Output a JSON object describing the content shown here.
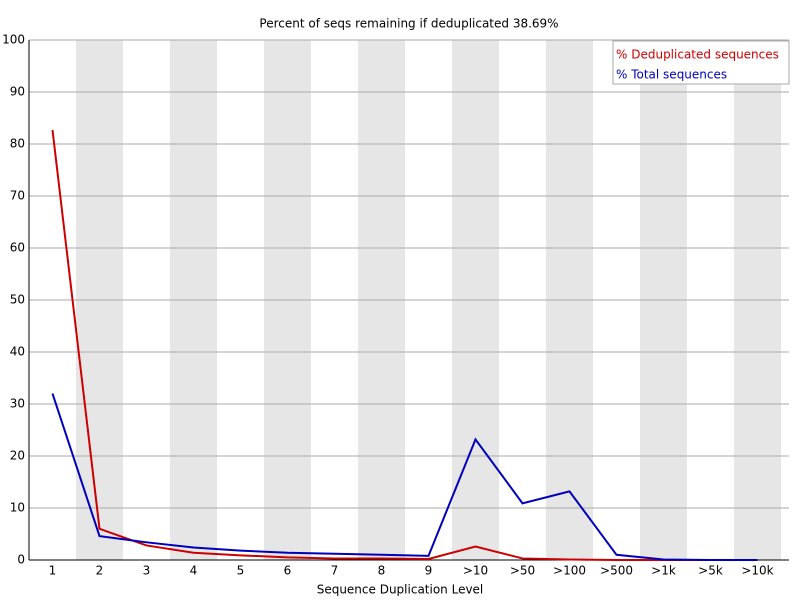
{
  "chart_data": {
    "type": "line",
    "title": "Percent of seqs remaining if deduplicated 38.69%",
    "x_label": "Sequence Duplication Level",
    "categories": [
      "1",
      "2",
      "3",
      "4",
      "5",
      "6",
      "7",
      "8",
      "9",
      ">10",
      ">50",
      ">100",
      ">500",
      ">1k",
      ">5k",
      ">10k"
    ],
    "series": [
      {
        "name": "% Deduplicated sequences",
        "color": "#cc0000",
        "values": [
          82.7,
          6.0,
          2.8,
          1.4,
          0.9,
          0.5,
          0.3,
          0.3,
          0.2,
          2.6,
          0.3,
          0.1,
          0.0,
          0.0,
          0.0,
          0.0
        ]
      },
      {
        "name": "% Total sequences",
        "color": "#0000bb",
        "values": [
          32.0,
          4.6,
          3.4,
          2.4,
          1.8,
          1.4,
          1.2,
          1.0,
          0.8,
          23.2,
          10.9,
          13.2,
          1.0,
          0.1,
          0.0,
          0.0
        ]
      }
    ],
    "ylim": [
      0,
      100
    ],
    "yticks": [
      0,
      10,
      20,
      30,
      40,
      50,
      60,
      70,
      80,
      90,
      100
    ],
    "grid": true,
    "legend": "top-right"
  }
}
